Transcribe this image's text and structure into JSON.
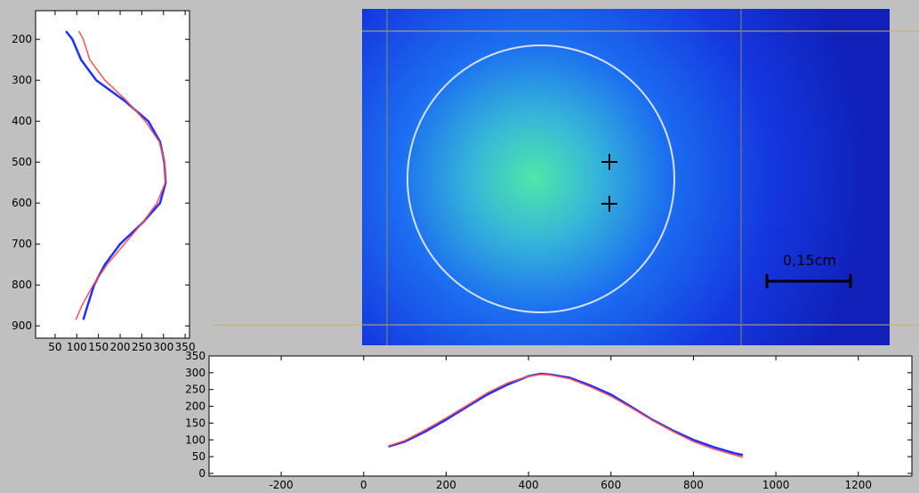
{
  "chart_data": [
    {
      "type": "line",
      "y": [
        180,
        200,
        250,
        300,
        350,
        400,
        450,
        500,
        550,
        600,
        650,
        700,
        750,
        800,
        850,
        885
      ],
      "series": [
        {
          "color": "#1f2fff",
          "values": [
            75,
            90,
            110,
            145,
            210,
            265,
            292,
            302,
            305,
            292,
            250,
            200,
            165,
            140,
            125,
            115
          ]
        },
        {
          "color": "#ff5050",
          "values": [
            105,
            115,
            130,
            165,
            215,
            258,
            290,
            303,
            304,
            285,
            250,
            210,
            170,
            138,
            112,
            98
          ]
        }
      ],
      "xlim": [
        5,
        360
      ],
      "xticks": [
        50,
        100,
        150,
        200,
        250,
        300,
        350
      ],
      "ylim": [
        930,
        130
      ],
      "yticks": [
        200,
        300,
        400,
        500,
        600,
        700,
        800,
        900
      ]
    },
    {
      "type": "line",
      "x": [
        60,
        100,
        150,
        200,
        250,
        300,
        350,
        400,
        430,
        450,
        500,
        550,
        600,
        650,
        700,
        750,
        800,
        850,
        900,
        920
      ],
      "series": [
        {
          "color": "#1f2fff",
          "values": [
            80,
            95,
            125,
            160,
            198,
            235,
            265,
            290,
            297,
            295,
            285,
            262,
            235,
            198,
            160,
            128,
            100,
            78,
            60,
            55
          ]
        },
        {
          "color": "#ff5050",
          "values": [
            82,
            98,
            130,
            165,
            202,
            240,
            270,
            290,
            295,
            294,
            282,
            258,
            230,
            195,
            158,
            125,
            95,
            72,
            55,
            48
          ]
        }
      ],
      "xlim": [
        -375,
        1330
      ],
      "xticks": [
        -200,
        0,
        200,
        400,
        600,
        800,
        1000,
        1200
      ],
      "ylim": [
        -8,
        350
      ],
      "yticks": [
        0,
        50,
        100,
        150,
        200,
        250,
        300,
        350
      ]
    }
  ],
  "scale_bar": {
    "label": "0,15cm"
  }
}
